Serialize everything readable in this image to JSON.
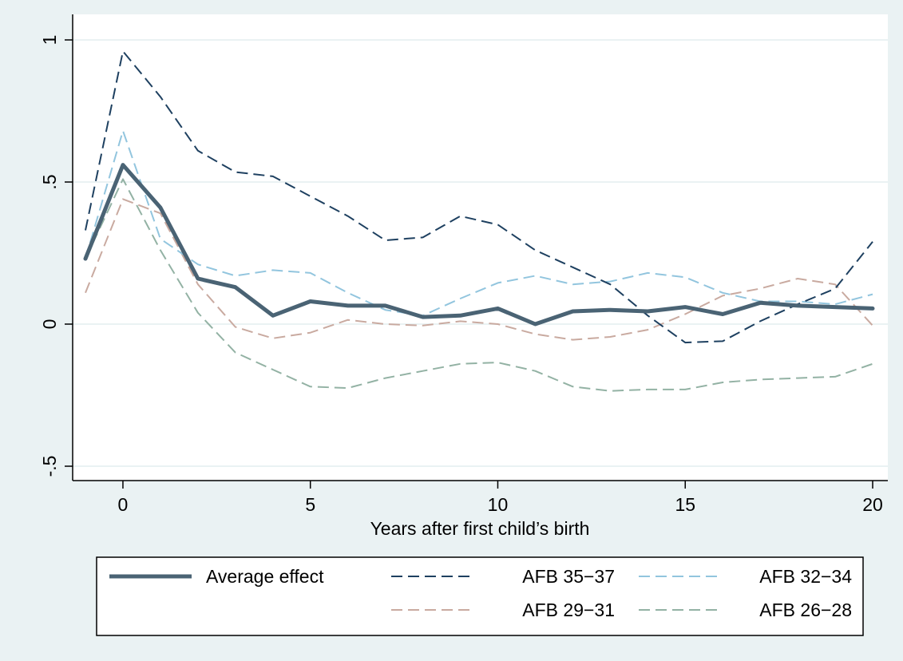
{
  "colors": {
    "background": "#eaf2f3",
    "plot_background": "#ffffff",
    "grid": "#eaf2f3",
    "axis": "#000000"
  },
  "chart_data": {
    "type": "line",
    "xlabel": "Years after first child’s birth",
    "ylabel": "",
    "title": "",
    "xlim": [
      -1,
      20
    ],
    "ylim": [
      -0.5,
      1
    ],
    "x_ticks": [
      {
        "value": 0,
        "label": "0"
      },
      {
        "value": 5,
        "label": "5"
      },
      {
        "value": 10,
        "label": "10"
      },
      {
        "value": 15,
        "label": "15"
      },
      {
        "value": 20,
        "label": "20"
      }
    ],
    "y_ticks": [
      {
        "value": -0.5,
        "label": "-.5"
      },
      {
        "value": 0,
        "label": "0"
      },
      {
        "value": 0.5,
        "label": ".5"
      },
      {
        "value": 1,
        "label": "1"
      }
    ],
    "grid": "horizontal",
    "legend_position": "bottom",
    "x": [
      -1,
      0,
      1,
      2,
      3,
      4,
      5,
      6,
      7,
      8,
      9,
      10,
      11,
      12,
      13,
      14,
      15,
      16,
      17,
      18,
      19,
      20
    ],
    "series": [
      {
        "name": "Average effect",
        "color": "#4a6374",
        "style": "solid",
        "width": 5,
        "values": [
          0.23,
          0.56,
          0.41,
          0.16,
          0.13,
          0.03,
          0.08,
          0.065,
          0.065,
          0.025,
          0.03,
          0.055,
          0.0,
          0.045,
          0.05,
          0.045,
          0.06,
          0.035,
          0.075,
          0.065,
          0.06,
          0.055
        ]
      },
      {
        "name": "AFB 35−37",
        "color": "#1e4060",
        "style": "dashed",
        "width": 2,
        "values": [
          0.33,
          0.96,
          0.8,
          0.61,
          0.535,
          0.52,
          0.45,
          0.38,
          0.295,
          0.305,
          0.38,
          0.35,
          0.26,
          0.2,
          0.14,
          0.03,
          -0.065,
          -0.06,
          0.01,
          0.07,
          0.125,
          0.29
        ]
      },
      {
        "name": "AFB 32−34",
        "color": "#92c5de",
        "style": "dashed",
        "width": 2,
        "values": [
          0.23,
          0.68,
          0.3,
          0.21,
          0.17,
          0.19,
          0.18,
          0.11,
          0.05,
          0.03,
          0.09,
          0.145,
          0.17,
          0.14,
          0.15,
          0.18,
          0.165,
          0.11,
          0.08,
          0.08,
          0.07,
          0.105
        ]
      },
      {
        "name": "AFB 29−31",
        "color": "#c9aaa0",
        "style": "dashed",
        "width": 2,
        "values": [
          0.11,
          0.44,
          0.39,
          0.14,
          -0.01,
          -0.05,
          -0.03,
          0.015,
          0.0,
          -0.005,
          0.01,
          0.0,
          -0.035,
          -0.055,
          -0.045,
          -0.02,
          0.035,
          0.1,
          0.125,
          0.16,
          0.14,
          -0.005
        ]
      },
      {
        "name": "AFB 26−28",
        "color": "#93b2a4",
        "style": "dashed",
        "width": 2,
        "values": [
          0.23,
          0.51,
          0.26,
          0.04,
          -0.1,
          -0.16,
          -0.22,
          -0.225,
          -0.19,
          -0.165,
          -0.14,
          -0.135,
          -0.165,
          -0.22,
          -0.235,
          -0.23,
          -0.23,
          -0.205,
          -0.195,
          -0.19,
          -0.185,
          -0.14
        ]
      }
    ]
  }
}
